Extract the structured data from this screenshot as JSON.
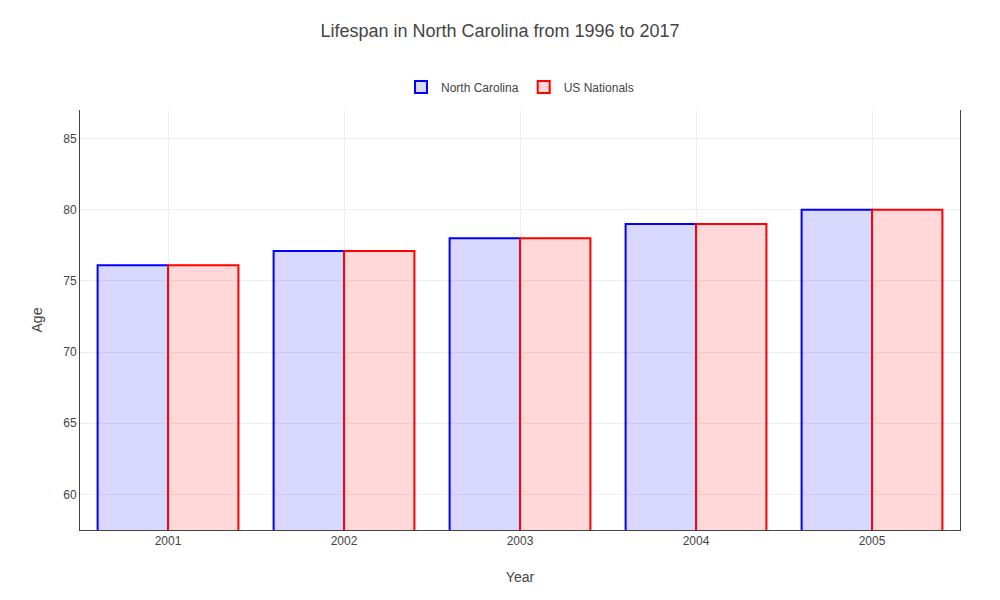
{
  "chart_data": {
    "type": "bar",
    "title": "Lifespan in North Carolina from 1996 to 2017",
    "xlabel": "Year",
    "ylabel": "Age",
    "categories": [
      "2001",
      "2002",
      "2003",
      "2004",
      "2005"
    ],
    "series": [
      {
        "name": "North Carolina",
        "color": "#0000ff",
        "values": [
          76.1,
          77.1,
          78.0,
          79.0,
          80.0
        ]
      },
      {
        "name": "US Nationals",
        "color": "#ff0000",
        "values": [
          76.1,
          77.1,
          78.0,
          79.0,
          80.0
        ]
      }
    ],
    "ylim": [
      57.5,
      87
    ],
    "yticks": [
      60,
      65,
      70,
      75,
      80,
      85
    ],
    "grid": true,
    "legend": "top"
  }
}
